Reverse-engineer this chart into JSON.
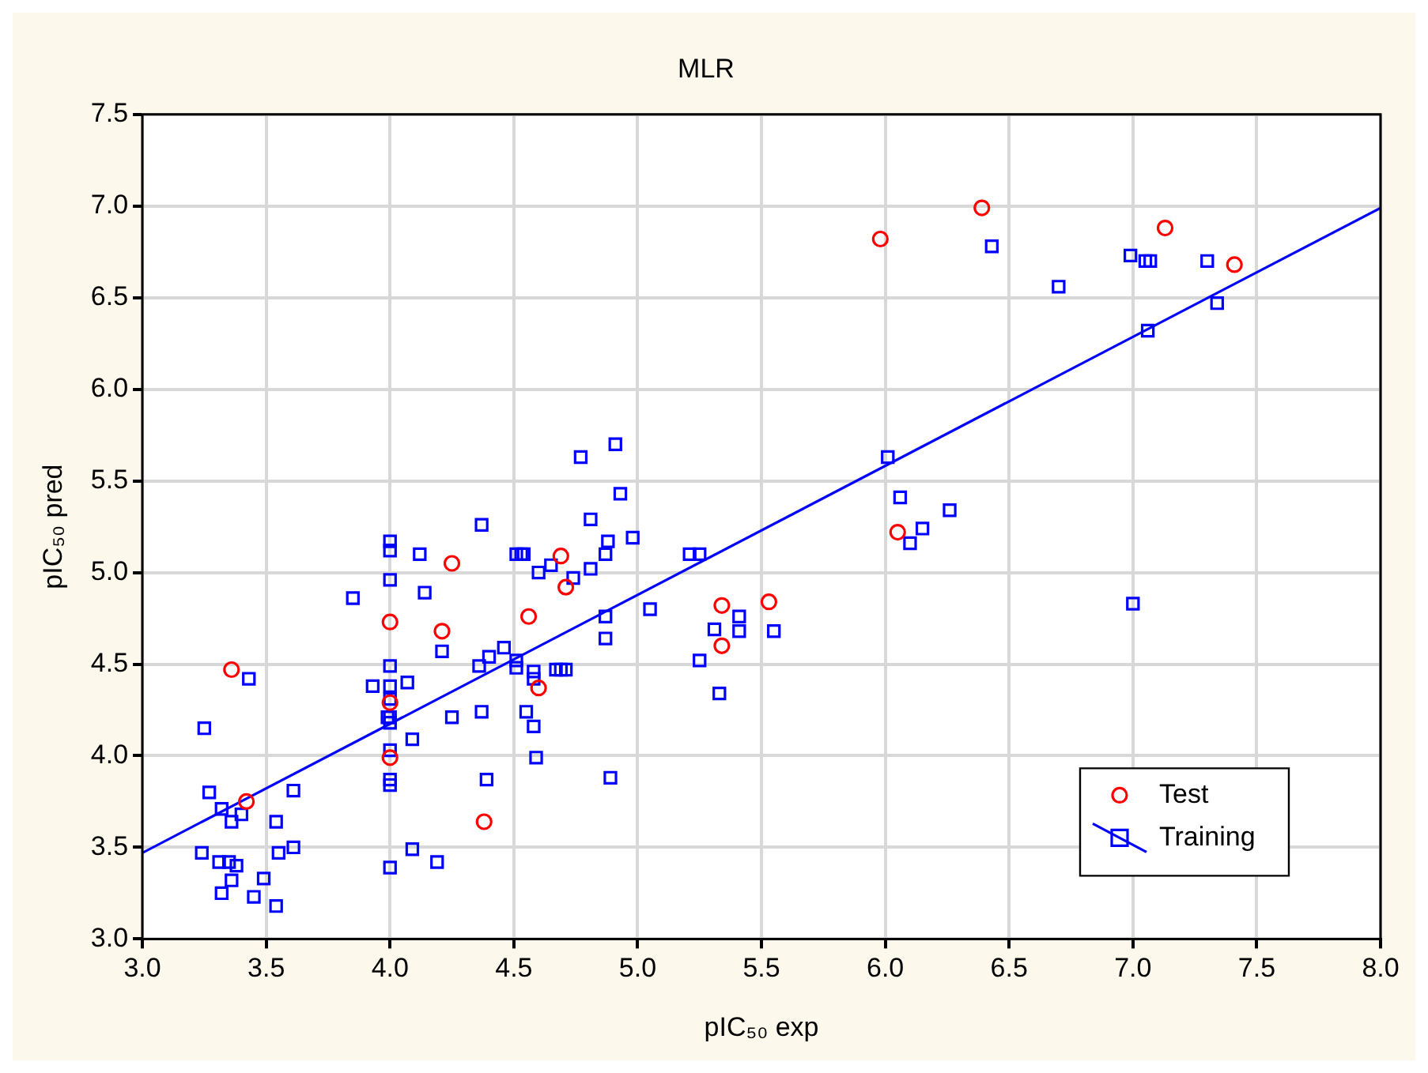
{
  "chart_data": {
    "type": "scatter",
    "title": "MLR",
    "xlabel": "pIC₅₀ exp",
    "ylabel": "pIC₅₀ pred",
    "xlim": [
      3.0,
      8.0
    ],
    "xticks": [
      {
        "value": 3,
        "label": "3.0"
      },
      {
        "value": 3.5,
        "label": "3.5"
      },
      {
        "value": 4,
        "label": "4.0"
      },
      {
        "value": 4.5,
        "label": "4.5"
      },
      {
        "value": 5,
        "label": "5.0"
      },
      {
        "value": 5.5,
        "label": "5.5"
      },
      {
        "value": 6,
        "label": "6.0"
      },
      {
        "value": 6.5,
        "label": "6.5"
      },
      {
        "value": 7,
        "label": "7.0"
      },
      {
        "value": 7.5,
        "label": "7.5"
      },
      {
        "value": 8,
        "label": "8.0"
      }
    ],
    "ylim": [
      3.0,
      7.5
    ],
    "yticks": [
      {
        "value": 3,
        "label": "3.0"
      },
      {
        "value": 3.5,
        "label": "3.5"
      },
      {
        "value": 4,
        "label": "4.0"
      },
      {
        "value": 4.5,
        "label": "4.5"
      },
      {
        "value": 5,
        "label": "5.0"
      },
      {
        "value": 5.5,
        "label": "5.5"
      },
      {
        "value": 6,
        "label": "6.0"
      },
      {
        "value": 6.5,
        "label": "6.5"
      },
      {
        "value": 7,
        "label": "7.0"
      },
      {
        "value": 7.5,
        "label": "7.5"
      }
    ],
    "grid": true,
    "legend": "bottom right",
    "series": [
      {
        "name": "Test",
        "color": "#ff0000",
        "marker": "circle",
        "x": [
          3.36,
          3.42,
          4.0,
          4.0,
          4.0,
          4.25,
          4.21,
          4.38,
          4.56,
          4.69,
          4.71,
          4.6,
          5.34,
          5.34,
          5.53,
          6.05,
          5.98,
          6.39,
          7.13,
          7.41
        ],
        "values": [
          4.47,
          3.75,
          4.73,
          4.29,
          3.99,
          5.05,
          4.68,
          3.64,
          4.76,
          5.09,
          4.92,
          4.37,
          4.82,
          4.6,
          4.84,
          5.22,
          6.82,
          6.99,
          6.88,
          6.68
        ]
      },
      {
        "name": "Training",
        "color": "#0000ff",
        "marker": "square",
        "x": [
          3.43,
          3.25,
          3.27,
          3.32,
          3.36,
          3.4,
          3.61,
          3.54,
          3.61,
          3.55,
          3.24,
          3.31,
          3.35,
          3.38,
          3.36,
          3.49,
          3.32,
          3.45,
          3.54,
          4.0,
          3.93,
          4.07,
          4.0,
          4.0,
          3.99,
          4.0,
          4.0,
          4.09,
          4.25,
          4.0,
          4.0,
          4.0,
          4.09,
          4.0,
          4.19,
          3.85,
          4.21,
          4.0,
          4.0,
          4.12,
          4.0,
          4.14,
          4.37,
          4.81,
          4.88,
          4.51,
          4.53,
          4.54,
          4.6,
          4.65,
          4.74,
          4.81,
          4.87,
          4.87,
          4.87,
          4.39,
          4.37,
          4.36,
          4.4,
          4.46,
          4.51,
          4.51,
          4.58,
          4.58,
          4.55,
          4.58,
          4.59,
          4.67,
          4.69,
          4.71,
          4.91,
          4.77,
          4.93,
          4.98,
          5.21,
          5.25,
          5.05,
          5.31,
          5.41,
          5.41,
          5.55,
          5.25,
          5.33,
          4.89,
          6.01,
          6.06,
          6.15,
          6.26,
          6.1,
          6.43,
          6.7,
          6.99,
          7.05,
          7.07,
          7.3,
          7.34,
          7.06,
          7.0
        ],
        "values": [
          4.42,
          4.15,
          3.8,
          3.71,
          3.64,
          3.68,
          3.81,
          3.64,
          3.5,
          3.47,
          3.47,
          3.42,
          3.42,
          3.4,
          3.32,
          3.33,
          3.25,
          3.23,
          3.18,
          4.49,
          4.38,
          4.4,
          4.38,
          4.31,
          4.21,
          4.21,
          4.18,
          4.09,
          4.21,
          4.03,
          3.87,
          3.84,
          3.49,
          3.39,
          3.42,
          4.86,
          4.57,
          5.17,
          5.12,
          5.1,
          4.96,
          4.89,
          5.26,
          5.29,
          5.17,
          5.1,
          5.1,
          5.1,
          5.0,
          5.04,
          4.97,
          5.02,
          5.1,
          4.76,
          4.64,
          3.87,
          4.24,
          4.49,
          4.54,
          4.59,
          4.52,
          4.48,
          4.46,
          4.42,
          4.24,
          4.16,
          3.99,
          4.47,
          4.47,
          4.47,
          5.7,
          5.63,
          5.43,
          5.19,
          5.1,
          5.1,
          4.8,
          4.69,
          4.76,
          4.68,
          4.68,
          4.52,
          4.34,
          3.88,
          5.63,
          5.41,
          5.24,
          5.34,
          5.16,
          6.78,
          6.56,
          6.73,
          6.7,
          6.7,
          6.7,
          6.47,
          6.32,
          4.83
        ]
      },
      {
        "type": "line",
        "color": "#0000ff",
        "marker": "none",
        "x": [
          3.0,
          8.0
        ],
        "values": [
          3.47,
          6.99
        ]
      }
    ]
  }
}
